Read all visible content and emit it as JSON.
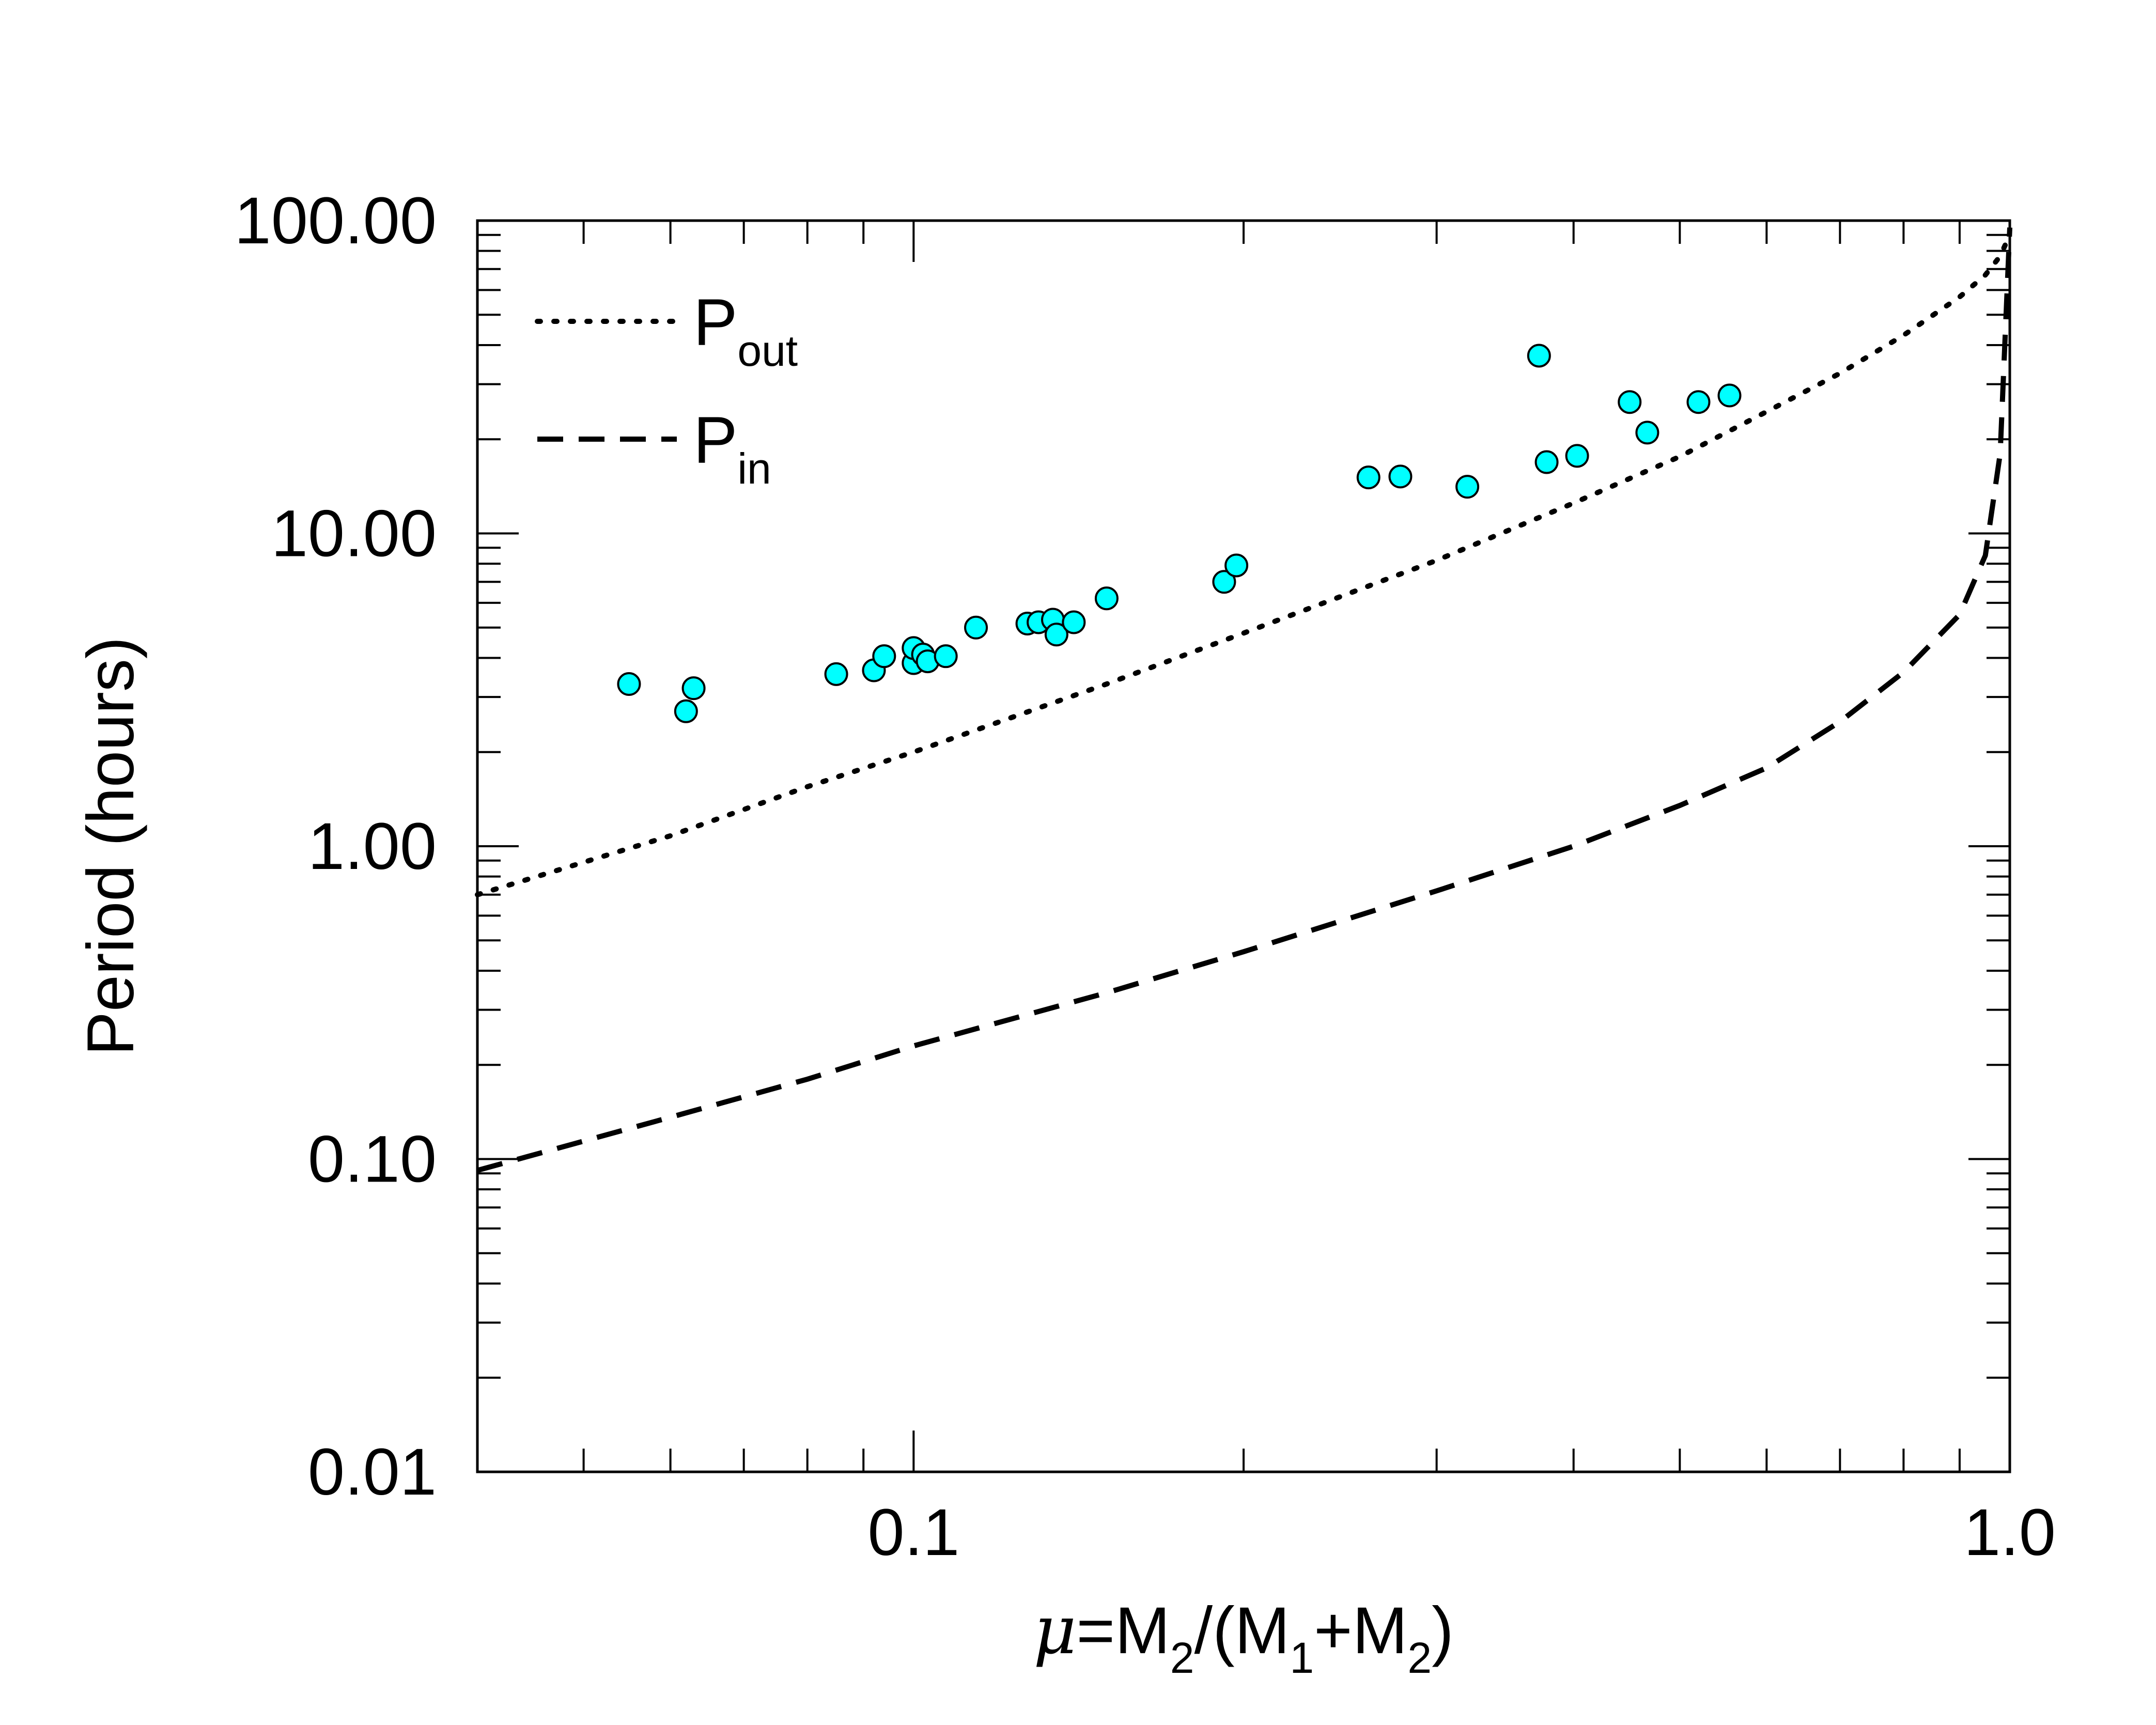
{
  "chart_data": {
    "type": "scatter",
    "title": "",
    "x_scale": "log",
    "y_scale": "log",
    "xlim": [
      0.04,
      1.0
    ],
    "ylim": [
      0.01,
      100
    ],
    "x_tick_labels": [
      {
        "value": 0.1,
        "label": "0.1"
      },
      {
        "value": 1.0,
        "label": "1.0"
      }
    ],
    "y_tick_labels": [
      {
        "value": 0.01,
        "label": "0.01"
      },
      {
        "value": 0.1,
        "label": "0.10"
      },
      {
        "value": 1,
        "label": "1.00"
      },
      {
        "value": 10,
        "label": "10.00"
      },
      {
        "value": 100,
        "label": "100.00"
      }
    ],
    "xlabel": {
      "mu": "μ",
      "eq": "=M",
      "s2a": "2",
      "mid": "/(M",
      "s1": "1",
      "plus": "+M",
      "s2b": "2",
      "close": ")"
    },
    "ylabel": "Period (hours)",
    "legend": [
      {
        "name": "P",
        "sub": "out",
        "style": "dotted"
      },
      {
        "name": "P",
        "sub": "in",
        "style": "dashed"
      }
    ],
    "lines": [
      {
        "name": "P_out",
        "style": "dotted",
        "points": [
          [
            0.04,
            0.7
          ],
          [
            0.06,
            1.08
          ],
          [
            0.08,
            1.55
          ],
          [
            0.1,
            2.0
          ],
          [
            0.15,
            3.3
          ],
          [
            0.2,
            4.8
          ],
          [
            0.3,
            8.2
          ],
          [
            0.4,
            12.5
          ],
          [
            0.5,
            17.6
          ],
          [
            0.6,
            24.5
          ],
          [
            0.7,
            32.5
          ],
          [
            0.8,
            43
          ],
          [
            0.9,
            57
          ],
          [
            0.95,
            67
          ],
          [
            0.98,
            77
          ],
          [
            1.0,
            90
          ]
        ]
      },
      {
        "name": "P_in",
        "style": "dashed",
        "points": [
          [
            0.04,
            0.092
          ],
          [
            0.06,
            0.136
          ],
          [
            0.08,
            0.18
          ],
          [
            0.1,
            0.23
          ],
          [
            0.15,
            0.34
          ],
          [
            0.2,
            0.46
          ],
          [
            0.3,
            0.72
          ],
          [
            0.4,
            1.0
          ],
          [
            0.5,
            1.35
          ],
          [
            0.6,
            1.78
          ],
          [
            0.7,
            2.5
          ],
          [
            0.8,
            3.6
          ],
          [
            0.9,
            5.5
          ],
          [
            0.95,
            8.5
          ],
          [
            0.98,
            18
          ],
          [
            1.0,
            95
          ]
        ]
      }
    ],
    "points": [
      {
        "x": 0.055,
        "y": 3.3
      },
      {
        "x": 0.062,
        "y": 2.7
      },
      {
        "x": 0.063,
        "y": 3.2
      },
      {
        "x": 0.085,
        "y": 3.55
      },
      {
        "x": 0.092,
        "y": 3.65
      },
      {
        "x": 0.094,
        "y": 4.05
      },
      {
        "x": 0.1,
        "y": 3.85
      },
      {
        "x": 0.1,
        "y": 4.3
      },
      {
        "x": 0.102,
        "y": 4.1
      },
      {
        "x": 0.103,
        "y": 3.9
      },
      {
        "x": 0.107,
        "y": 4.05
      },
      {
        "x": 0.114,
        "y": 5.0
      },
      {
        "x": 0.127,
        "y": 5.15
      },
      {
        "x": 0.13,
        "y": 5.2
      },
      {
        "x": 0.134,
        "y": 5.3
      },
      {
        "x": 0.135,
        "y": 4.75
      },
      {
        "x": 0.14,
        "y": 5.2
      },
      {
        "x": 0.15,
        "y": 6.2
      },
      {
        "x": 0.192,
        "y": 7.0
      },
      {
        "x": 0.197,
        "y": 7.9
      },
      {
        "x": 0.26,
        "y": 15.1
      },
      {
        "x": 0.278,
        "y": 15.2
      },
      {
        "x": 0.32,
        "y": 14.1
      },
      {
        "x": 0.372,
        "y": 37.0
      },
      {
        "x": 0.378,
        "y": 16.9
      },
      {
        "x": 0.403,
        "y": 17.7
      },
      {
        "x": 0.45,
        "y": 26.3
      },
      {
        "x": 0.467,
        "y": 21.0
      },
      {
        "x": 0.52,
        "y": 26.3
      },
      {
        "x": 0.555,
        "y": 27.6
      }
    ]
  },
  "colors": {
    "marker_fill": "#00ffff",
    "marker_stroke": "#000000",
    "axis": "#000000"
  }
}
